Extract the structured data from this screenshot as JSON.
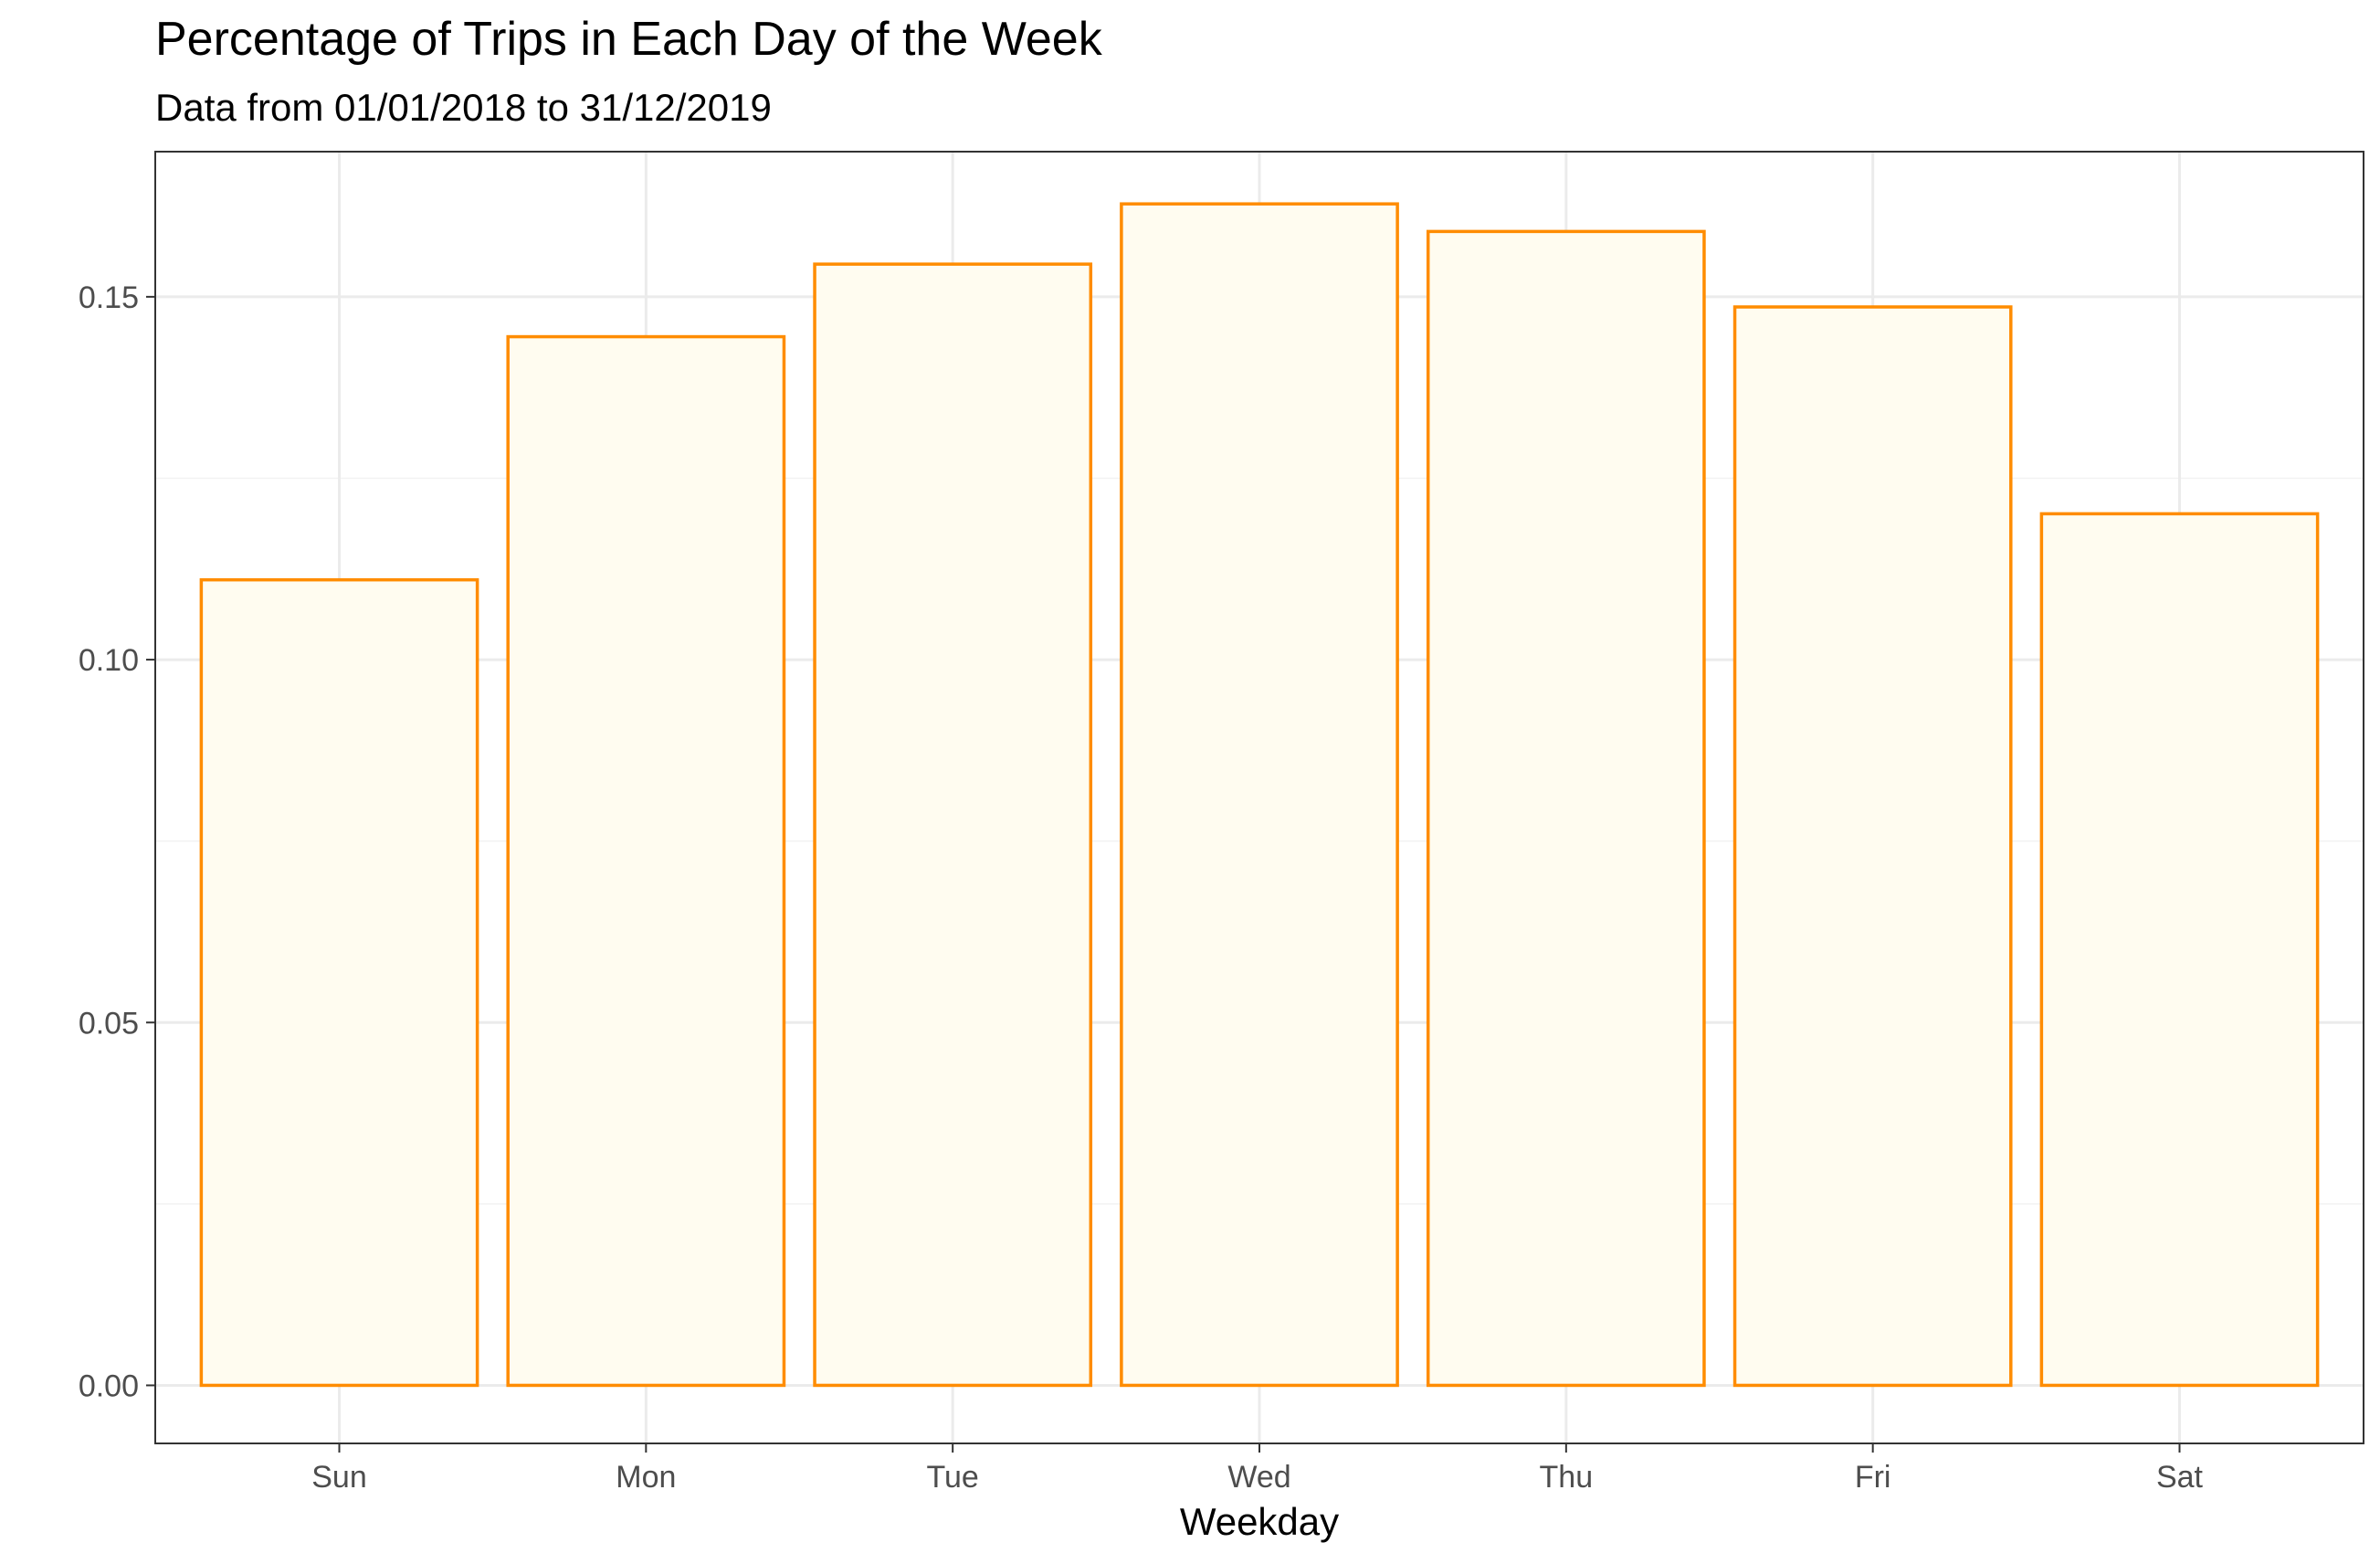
{
  "chart_data": {
    "type": "bar",
    "title": "Percentage of Trips in Each Day of the Week",
    "subtitle": "Data from 01/01/2018 to 31/12/2019",
    "xlabel": "Weekday",
    "ylabel": "",
    "categories": [
      "Sun",
      "Mon",
      "Tue",
      "Wed",
      "Thu",
      "Fri",
      "Sat"
    ],
    "values": [
      0.111,
      0.1445,
      0.1545,
      0.1628,
      0.159,
      0.1486,
      0.1201
    ],
    "ylim": [
      -0.008,
      0.17
    ],
    "yticks": [
      0.0,
      0.05,
      0.1,
      0.15
    ],
    "ytick_labels": [
      "0.00",
      "0.05",
      "0.10",
      "0.15"
    ],
    "grid": true,
    "colors": {
      "bar_fill": "#fffcf0",
      "bar_stroke": "#ff8c00",
      "grid_major": "#ebebeb",
      "grid_minor": "#f2f2f2",
      "panel_border": "#333333",
      "tick_color": "#333333"
    }
  }
}
